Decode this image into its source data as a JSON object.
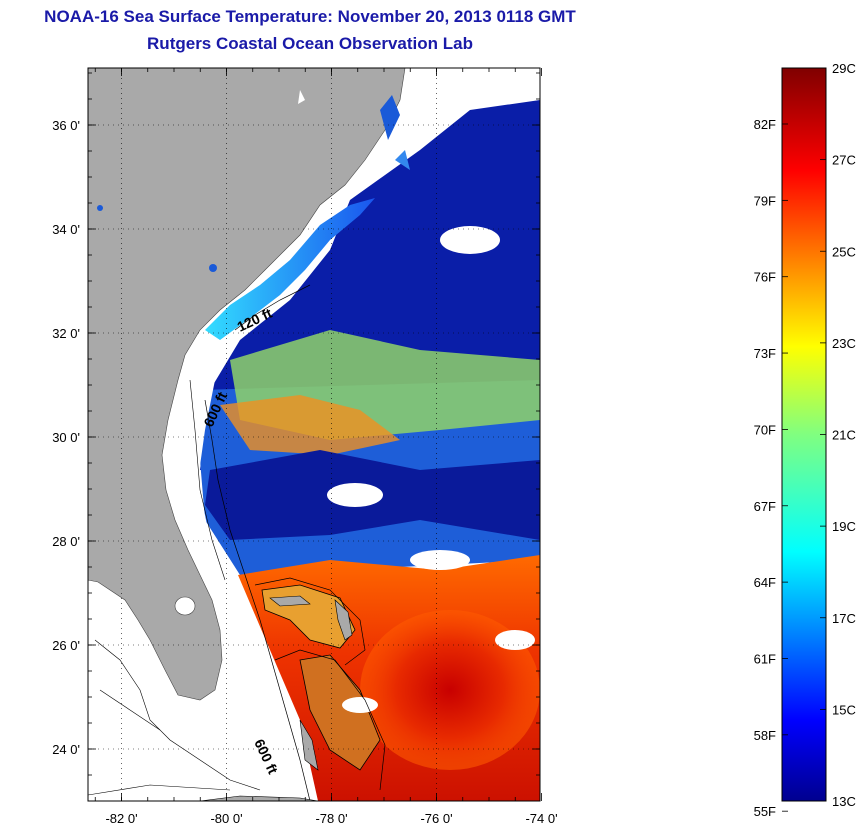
{
  "header": {
    "title": "NOAA-16 Sea Surface Temperature:  November 20, 2013 0118 GMT",
    "subtitle": "Rutgers Coastal Ocean Observation Lab"
  },
  "map": {
    "lat_ticks": [
      {
        "value": 36,
        "label": "36 0'"
      },
      {
        "value": 34,
        "label": "34 0'"
      },
      {
        "value": 32,
        "label": "32 0'"
      },
      {
        "value": 30,
        "label": "30 0'"
      },
      {
        "value": 28,
        "label": "28 0'"
      },
      {
        "value": 26,
        "label": "26 0'"
      },
      {
        "value": 24,
        "label": "24 0'"
      }
    ],
    "lon_ticks": [
      {
        "value": -82,
        "label": "-82 0'"
      },
      {
        "value": -80,
        "label": "-80 0'"
      },
      {
        "value": -78,
        "label": "-78 0'"
      },
      {
        "value": -76,
        "label": "-76 0'"
      },
      {
        "value": -74,
        "label": "-74 0'"
      }
    ],
    "isobath_labels": [
      "120 ft",
      "600 ft",
      "600 ft"
    ],
    "land_color": "#a9a9a9",
    "cloud_color": "#ffffff"
  },
  "colorbar": {
    "celsius_labels": [
      "29C",
      "27C",
      "25C",
      "23C",
      "21C",
      "19C",
      "17C",
      "15C",
      "13C"
    ],
    "fahrenheit_labels": [
      "82F",
      "79F",
      "76F",
      "73F",
      "70F",
      "67F",
      "64F",
      "61F",
      "58F",
      "55F"
    ],
    "colormap": "jet",
    "min_c": 13,
    "max_c": 29,
    "min_f": 55
  }
}
